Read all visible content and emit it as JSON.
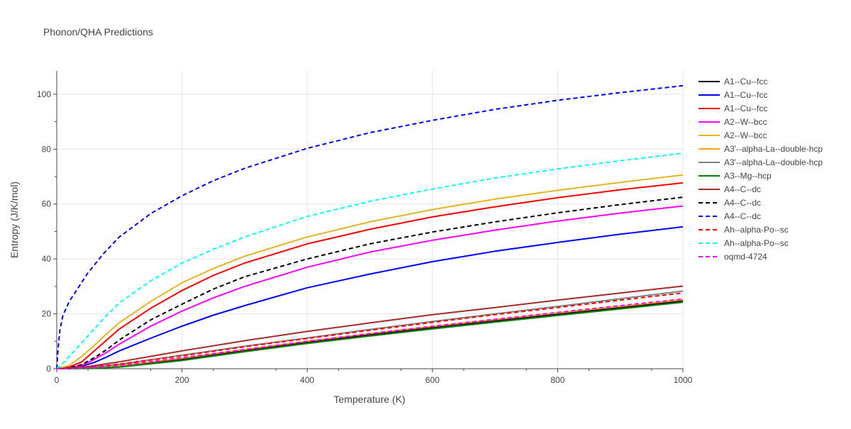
{
  "chart_data": {
    "type": "line",
    "title": "Phonon/QHA Predictions",
    "xlabel": "Temperature (K)",
    "ylabel": "Entropy (J/K/mol)",
    "xlim": [
      0,
      1000
    ],
    "ylim": [
      0,
      108.5
    ],
    "xticks": [
      0,
      200,
      400,
      600,
      800,
      1000
    ],
    "yticks": [
      0,
      20,
      40,
      60,
      80,
      100
    ],
    "grid": true,
    "legend_position": "right",
    "series": [
      {
        "name": "A1--Cu--fcc",
        "color": "#000000",
        "dash": "solid",
        "x": [
          0,
          50,
          100,
          200,
          300,
          400,
          500,
          600,
          700,
          800,
          900,
          1000
        ],
        "y": [
          0,
          0.2,
          0.9,
          3.5,
          6.7,
          9.7,
          12.4,
          15.0,
          17.5,
          19.9,
          22.3,
          24.7
        ]
      },
      {
        "name": "A1--Cu--fcc",
        "color": "#0000ff",
        "dash": "solid",
        "x": [
          0,
          20,
          40,
          60,
          80,
          100,
          150,
          200,
          250,
          300,
          400,
          500,
          600,
          700,
          800,
          900,
          1000
        ],
        "y": [
          0,
          0.2,
          0.9,
          2.3,
          4.3,
          6.5,
          11.1,
          15.5,
          19.5,
          23.0,
          29.5,
          34.5,
          39.0,
          42.8,
          46.0,
          49.0,
          51.7
        ]
      },
      {
        "name": "A1--Cu--fcc",
        "color": "#ff0000",
        "dash": "solid",
        "x": [
          0,
          20,
          40,
          60,
          80,
          100,
          150,
          200,
          250,
          300,
          400,
          500,
          600,
          700,
          800,
          900,
          1000
        ],
        "y": [
          0,
          0.6,
          2.5,
          6.5,
          10.5,
          14.5,
          22.0,
          28.5,
          34.0,
          38.5,
          45.5,
          50.8,
          55.3,
          59.0,
          62.3,
          65.2,
          67.7
        ]
      },
      {
        "name": "A2--W--bcc",
        "color": "#ff00ff",
        "dash": "solid",
        "x": [
          0,
          20,
          40,
          60,
          80,
          100,
          150,
          200,
          250,
          300,
          400,
          500,
          600,
          700,
          800,
          900,
          1000
        ],
        "y": [
          0,
          0.3,
          1.2,
          3.4,
          6.0,
          9.0,
          15.5,
          21.0,
          25.8,
          30.0,
          37.0,
          42.5,
          46.8,
          50.5,
          53.8,
          56.7,
          59.3
        ]
      },
      {
        "name": "A2--W--bcc",
        "color": "#e6b422",
        "dash": "solid",
        "x": [
          0,
          20,
          40,
          60,
          80,
          100,
          150,
          200,
          250,
          300,
          400,
          500,
          600,
          700,
          800,
          900,
          1000
        ],
        "y": [
          0,
          1.2,
          4.5,
          8.5,
          12.8,
          16.8,
          24.5,
          31.3,
          36.5,
          41.0,
          48.0,
          53.5,
          58.0,
          61.8,
          65.0,
          67.9,
          70.6
        ]
      },
      {
        "name": "A3'--alpha-La--double-hcp",
        "color": "#ffa500",
        "dash": "solid",
        "x": [
          0,
          50,
          100,
          200,
          300,
          400,
          500,
          600,
          700,
          800,
          900,
          1000
        ],
        "y": [
          0,
          0.3,
          1.1,
          3.8,
          7.0,
          10.0,
          12.8,
          15.4,
          17.9,
          20.3,
          22.7,
          25.1
        ]
      },
      {
        "name": "A3'--alpha-La--double-hcp",
        "color": "#808080",
        "dash": "solid",
        "x": [
          0,
          50,
          100,
          200,
          300,
          400,
          500,
          600,
          700,
          800,
          900,
          1000
        ],
        "y": [
          0,
          0.5,
          1.6,
          4.9,
          8.2,
          11.2,
          14.3,
          17.2,
          20.0,
          22.7,
          25.5,
          28.3
        ]
      },
      {
        "name": "A3--Mg--hcp",
        "color": "#008000",
        "dash": "solid",
        "x": [
          0,
          50,
          100,
          200,
          300,
          400,
          500,
          600,
          700,
          800,
          900,
          1000
        ],
        "y": [
          0,
          0.1,
          0.6,
          3.0,
          6.2,
          9.2,
          11.9,
          14.5,
          17.0,
          19.4,
          21.8,
          24.2
        ]
      },
      {
        "name": "A4--C--dc",
        "color": "#a52a2a",
        "dash": "solid",
        "x": [
          0,
          20,
          50,
          100,
          200,
          300,
          400,
          500,
          600,
          700,
          800,
          900,
          1000
        ],
        "y": [
          0,
          0.2,
          0.8,
          2.5,
          6.5,
          10.2,
          13.6,
          16.7,
          19.7,
          22.3,
          25.0,
          27.6,
          30.1
        ]
      },
      {
        "name": "A4--C--dc",
        "color": "#000000",
        "dash": "dash",
        "x": [
          0,
          20,
          40,
          60,
          80,
          100,
          150,
          200,
          250,
          300,
          400,
          500,
          600,
          700,
          800,
          900,
          1000
        ],
        "y": [
          0,
          0.3,
          1.5,
          4.0,
          7.0,
          10.5,
          17.8,
          23.5,
          29.0,
          33.5,
          40.0,
          45.5,
          49.8,
          53.5,
          56.8,
          59.8,
          62.5
        ]
      },
      {
        "name": "A4--C--dc",
        "color": "#0000ff",
        "dash": "dash",
        "x": [
          0,
          2,
          5,
          10,
          20,
          30,
          50,
          75,
          100,
          150,
          200,
          250,
          300,
          400,
          500,
          600,
          700,
          800,
          900,
          1000
        ],
        "y": [
          0,
          7,
          14,
          19.5,
          24.5,
          28,
          35,
          42,
          48,
          56.5,
          63,
          68.5,
          73,
          80.3,
          86,
          90.5,
          94.5,
          97.8,
          100.6,
          103.1
        ]
      },
      {
        "name": "Ah--alpha-Po--sc",
        "color": "#ff0000",
        "dash": "dash",
        "x": [
          0,
          50,
          100,
          200,
          300,
          400,
          500,
          600,
          700,
          800,
          900,
          1000
        ],
        "y": [
          0,
          0.5,
          1.7,
          4.7,
          8.0,
          11.0,
          14.0,
          16.9,
          19.7,
          22.3,
          25.0,
          27.6
        ]
      },
      {
        "name": "Ah--alpha-Po--sc",
        "color": "#00ffff",
        "dash": "dash",
        "x": [
          0,
          10,
          20,
          40,
          60,
          80,
          100,
          150,
          200,
          250,
          300,
          400,
          500,
          600,
          700,
          800,
          900,
          1000
        ],
        "y": [
          0,
          2.0,
          4.5,
          9.5,
          14.5,
          19.5,
          24.0,
          32.0,
          38.5,
          43.5,
          48.0,
          55.5,
          61.0,
          65.5,
          69.5,
          72.8,
          75.8,
          78.5
        ]
      },
      {
        "name": "oqmd-4724",
        "color": "#ff00ff",
        "dash": "dash",
        "x": [
          0,
          50,
          100,
          200,
          300,
          400,
          500,
          600,
          700,
          800,
          900,
          1000
        ],
        "y": [
          0,
          0.3,
          1.2,
          4.0,
          7.0,
          10.0,
          12.8,
          15.5,
          18.0,
          20.5,
          23.0,
          25.4
        ]
      }
    ]
  }
}
